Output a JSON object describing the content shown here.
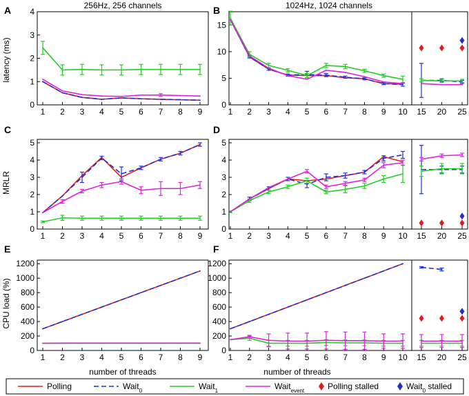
{
  "chart_data": {
    "type": "line",
    "column_titles": [
      "256Hz, 256 channels",
      "1024Hz, 1024 channels"
    ],
    "row_ylabels": [
      "latency (ms)",
      "MRLR",
      "CPU load (%)"
    ],
    "xlabel": "number of threads",
    "series_defs": [
      {
        "name": "Polling",
        "color": "#e41a1c",
        "dash": ""
      },
      {
        "name": "Wait0",
        "color": "#1f2fd8",
        "dash": "7,4"
      },
      {
        "name": "Wait1",
        "color": "#22cc22",
        "dash": ""
      },
      {
        "name": "Waitevent",
        "color": "#dd22dd",
        "dash": ""
      }
    ],
    "legend": {
      "location": "bottom",
      "items": [
        {
          "label": "Polling",
          "sub": "",
          "kind": "line",
          "color": "#e41a1c",
          "dash": ""
        },
        {
          "label": "Wait",
          "sub": "0",
          "kind": "line",
          "color": "#1f2fd8",
          "dash": "7,4"
        },
        {
          "label": "Wait",
          "sub": "1",
          "kind": "line",
          "color": "#22cc22",
          "dash": ""
        },
        {
          "label": "Wait",
          "sub": "event",
          "kind": "line",
          "color": "#dd22dd",
          "dash": ""
        },
        {
          "label": "Polling stalled",
          "sub": "",
          "kind": "diamond",
          "color": "#e41a1c",
          "dash": ""
        },
        {
          "label": "Wait",
          "sub": "0",
          "suffix": " stalled",
          "kind": "diamond",
          "color": "#1f2fd8",
          "dash": ""
        }
      ]
    },
    "panels": [
      {
        "id": "A",
        "row": 0,
        "col": 0,
        "ylim": [
          0,
          4
        ],
        "yticks": [
          0,
          1,
          2,
          3,
          4
        ],
        "x": [
          1,
          2,
          3,
          4,
          5,
          6,
          7,
          8,
          9
        ],
        "xticks": [
          1,
          2,
          3,
          4,
          5,
          6,
          7,
          8,
          9
        ],
        "series": [
          {
            "name": "Polling",
            "values": [
              1.0,
              0.52,
              0.32,
              0.24,
              0.3,
              0.26,
              0.24,
              0.22,
              0.2
            ],
            "err": [
              0,
              0,
              0,
              0,
              0,
              0,
              0,
              0,
              0
            ]
          },
          {
            "name": "Wait0",
            "values": [
              1.0,
              0.52,
              0.32,
              0.24,
              0.3,
              0.26,
              0.24,
              0.22,
              0.2
            ],
            "err": [
              0,
              0,
              0,
              0,
              0,
              0,
              0,
              0,
              0
            ]
          },
          {
            "name": "Wait1",
            "values": [
              2.45,
              1.5,
              1.52,
              1.5,
              1.5,
              1.52,
              1.52,
              1.52,
              1.52
            ],
            "err": [
              0.28,
              0.22,
              0.22,
              0.22,
              0.22,
              0.22,
              0.22,
              0.22,
              0.22
            ]
          },
          {
            "name": "Waitevent",
            "values": [
              1.1,
              0.6,
              0.44,
              0.38,
              0.36,
              0.42,
              0.42,
              0.4,
              0.38
            ],
            "err": [
              0,
              0,
              0,
              0,
              0,
              0,
              0.06,
              0,
              0
            ]
          }
        ],
        "stalled": []
      },
      {
        "id": "B",
        "row": 0,
        "col": 1,
        "ylim": [
          0,
          17.5
        ],
        "yticks": [
          0,
          5,
          10,
          15
        ],
        "x": [
          1,
          2,
          3,
          4,
          5,
          6,
          7,
          8,
          9,
          10,
          15,
          20,
          25
        ],
        "xticks": [
          1,
          2,
          3,
          4,
          5,
          6,
          7,
          8,
          9,
          10,
          15,
          20,
          25
        ],
        "series": [
          {
            "name": "Polling",
            "values": [
              16.0,
              9.0,
              6.7,
              5.6,
              5.5,
              5.5,
              5.1,
              4.9,
              4.0,
              3.9,
              null,
              null,
              null
            ],
            "err": [
              0,
              0,
              0,
              0,
              0,
              0,
              0,
              0,
              0,
              0,
              0,
              0,
              0
            ]
          },
          {
            "name": "Wait0",
            "values": [
              16.0,
              9.0,
              6.7,
              5.6,
              5.7,
              5.6,
              5.2,
              4.9,
              4.0,
              3.8,
              4.6,
              4.6,
              4.3
            ],
            "err": [
              0,
              0.2,
              0.2,
              0.2,
              0.6,
              0.3,
              0.2,
              0.2,
              0.2,
              0.3,
              3.2,
              0.3,
              0.3
            ]
          },
          {
            "name": "Wait1",
            "values": [
              16.3,
              9.5,
              7.4,
              6.5,
              5.5,
              7.4,
              7.2,
              6.4,
              5.5,
              4.8,
              4.6,
              4.5,
              4.5
            ],
            "err": [
              1.3,
              0.5,
              0.4,
              0.3,
              0.4,
              0.4,
              0.4,
              0.3,
              0.3,
              0.6,
              0.3,
              0.3,
              0.3
            ]
          },
          {
            "name": "Waitevent",
            "values": [
              16.0,
              9.2,
              6.9,
              5.5,
              4.8,
              6.5,
              6.1,
              5.3,
              4.3,
              4.0,
              4.0,
              3.8,
              3.8
            ],
            "err": [
              0,
              0,
              0,
              0,
              0,
              0,
              0,
              0,
              0,
              0,
              0,
              0,
              0
            ]
          }
        ],
        "stalled": [
          {
            "name": "Polling",
            "x": [
              15,
              20,
              25
            ],
            "values": [
              10.7,
              10.7,
              10.7
            ]
          },
          {
            "name": "Wait0",
            "x": [
              25
            ],
            "values": [
              12.1
            ]
          }
        ]
      },
      {
        "id": "C",
        "row": 1,
        "col": 0,
        "ylim": [
          0,
          5.2
        ],
        "yticks": [
          0,
          1,
          2,
          3,
          4,
          5
        ],
        "x": [
          1,
          2,
          3,
          4,
          5,
          6,
          7,
          8,
          9
        ],
        "xticks": [
          1,
          2,
          3,
          4,
          5,
          6,
          7,
          8,
          9
        ],
        "series": [
          {
            "name": "Polling",
            "values": [
              0.95,
              1.92,
              3.1,
              4.15,
              3.0,
              3.55,
              4.05,
              4.4,
              4.9
            ],
            "err": [
              0,
              0,
              0,
              0,
              0,
              0,
              0,
              0,
              0
            ]
          },
          {
            "name": "Wait0",
            "values": [
              0.95,
              1.92,
              3.0,
              4.12,
              3.2,
              3.55,
              4.05,
              4.4,
              4.9
            ],
            "err": [
              0,
              0,
              0.3,
              0.1,
              0.4,
              0.1,
              0.1,
              0.1,
              0.1
            ]
          },
          {
            "name": "Wait1",
            "values": [
              0.42,
              0.65,
              0.63,
              0.63,
              0.63,
              0.63,
              0.63,
              0.63,
              0.63
            ],
            "err": [
              0.05,
              0.15,
              0.12,
              0.12,
              0.12,
              0.12,
              0.12,
              0.12,
              0.12
            ]
          },
          {
            "name": "Waitevent",
            "values": [
              0.95,
              1.6,
              2.2,
              2.55,
              2.75,
              2.25,
              2.35,
              2.35,
              2.55
            ],
            "err": [
              0,
              0.1,
              0.1,
              0.15,
              0.15,
              0.2,
              0.4,
              0.35,
              0.2
            ]
          }
        ],
        "stalled": []
      },
      {
        "id": "D",
        "row": 1,
        "col": 1,
        "ylim": [
          0,
          5.2
        ],
        "yticks": [
          0,
          1,
          2,
          3,
          4,
          5
        ],
        "x": [
          1,
          2,
          3,
          4,
          5,
          6,
          7,
          8,
          9,
          10,
          15,
          20,
          25
        ],
        "xticks": [
          1,
          2,
          3,
          4,
          5,
          6,
          7,
          8,
          9,
          10,
          15,
          20,
          25
        ],
        "series": [
          {
            "name": "Polling",
            "values": [
              1.0,
              1.75,
              2.35,
              2.9,
              2.8,
              2.9,
              3.1,
              3.3,
              4.2,
              3.9,
              null,
              null,
              null
            ],
            "err": [
              0,
              0,
              0,
              0,
              0,
              0,
              0,
              0,
              0,
              0,
              0,
              0,
              0
            ]
          },
          {
            "name": "Wait0",
            "values": [
              1.0,
              1.75,
              2.35,
              2.9,
              2.6,
              3.0,
              3.1,
              3.3,
              4.1,
              4.3,
              3.45,
              3.45,
              3.45
            ],
            "err": [
              0,
              0.1,
              0.1,
              0.1,
              0.2,
              0.2,
              0.15,
              0.1,
              0.15,
              0.2,
              1.4,
              0.2,
              0.2
            ]
          },
          {
            "name": "Wait1",
            "values": [
              1.0,
              1.65,
              2.15,
              2.45,
              2.8,
              2.15,
              2.3,
              2.5,
              2.9,
              3.2,
              3.35,
              3.5,
              3.5
            ],
            "err": [
              0.05,
              0.1,
              0.1,
              0.1,
              0.15,
              0.1,
              0.2,
              0.15,
              0.2,
              0.5,
              0.3,
              0.3,
              0.3
            ]
          },
          {
            "name": "Waitevent",
            "values": [
              1.0,
              1.75,
              2.4,
              2.9,
              3.35,
              2.45,
              2.65,
              2.85,
              3.7,
              3.85,
              4.05,
              4.25,
              4.3
            ],
            "err": [
              0,
              0,
              0,
              0,
              0.1,
              0.1,
              0.1,
              0.1,
              0.15,
              0.15,
              0.1,
              0.1,
              0.1
            ]
          }
        ],
        "stalled": [
          {
            "name": "Polling",
            "x": [
              15,
              20,
              25
            ],
            "values": [
              0.35,
              0.35,
              0.35
            ]
          },
          {
            "name": "Wait0",
            "x": [
              25
            ],
            "values": [
              0.75
            ]
          }
        ]
      },
      {
        "id": "E",
        "row": 2,
        "col": 0,
        "ylim": [
          0,
          1250
        ],
        "yticks": [
          0,
          200,
          400,
          600,
          800,
          1000,
          1200
        ],
        "x": [
          1,
          2,
          3,
          4,
          5,
          6,
          7,
          8,
          9
        ],
        "xticks": [
          1,
          2,
          3,
          4,
          5,
          6,
          7,
          8,
          9
        ],
        "series": [
          {
            "name": "Polling",
            "values": [
              300,
              400,
              500,
              600,
              700,
              800,
              900,
              1000,
              1100
            ],
            "err": [
              0,
              0,
              0,
              0,
              0,
              0,
              0,
              0,
              0
            ]
          },
          {
            "name": "Wait0",
            "values": [
              300,
              400,
              500,
              600,
              700,
              800,
              900,
              1000,
              1100
            ],
            "err": [
              0,
              0,
              0,
              0,
              0,
              0,
              0,
              0,
              0
            ]
          },
          {
            "name": "Wait1",
            "values": [
              100,
              100,
              100,
              100,
              100,
              100,
              100,
              100,
              100
            ],
            "err": [
              0,
              0,
              0,
              0,
              0,
              0,
              0,
              0,
              0
            ]
          },
          {
            "name": "Waitevent",
            "values": [
              100,
              102,
              102,
              102,
              102,
              102,
              102,
              102,
              102
            ],
            "err": [
              0,
              0,
              0,
              0,
              0,
              0,
              0,
              0,
              0
            ]
          }
        ],
        "stalled": []
      },
      {
        "id": "F",
        "row": 2,
        "col": 1,
        "ylim": [
          0,
          1250
        ],
        "yticks": [
          0,
          200,
          400,
          600,
          800,
          1000,
          1200
        ],
        "x": [
          1,
          2,
          3,
          4,
          5,
          6,
          7,
          8,
          9,
          10,
          15,
          20,
          25
        ],
        "xticks": [
          1,
          2,
          3,
          4,
          5,
          6,
          7,
          8,
          9,
          10,
          15,
          20,
          25
        ],
        "series": [
          {
            "name": "Polling",
            "values": [
              300,
              400,
              500,
              600,
              700,
              800,
              900,
              1000,
              1100,
              1200,
              null,
              null,
              null
            ],
            "err": [
              0,
              0,
              0,
              0,
              0,
              0,
              0,
              0,
              0,
              0,
              0,
              0,
              0
            ]
          },
          {
            "name": "Wait0",
            "values": [
              300,
              400,
              500,
              600,
              700,
              800,
              900,
              1000,
              1100,
              1200,
              1150,
              1120,
              null
            ],
            "err": [
              0,
              0,
              0,
              0,
              0,
              0,
              0,
              0,
              0,
              0,
              10,
              20,
              0
            ]
          },
          {
            "name": "Wait1",
            "values": [
              150,
              170,
              100,
              100,
              100,
              110,
              105,
              105,
              100,
              100,
              100,
              100,
              100
            ],
            "err": [
              0,
              30,
              40,
              40,
              40,
              40,
              40,
              40,
              40,
              40,
              40,
              40,
              40
            ]
          },
          {
            "name": "Waitevent",
            "values": [
              150,
              190,
              140,
              130,
              130,
              140,
              135,
              135,
              130,
              130,
              130,
              130,
              130
            ],
            "err": [
              0,
              20,
              90,
              110,
              110,
              120,
              120,
              120,
              100,
              100,
              90,
              90,
              90
            ]
          }
        ],
        "stalled": [
          {
            "name": "Polling",
            "x": [
              15,
              20,
              25
            ],
            "values": [
              445,
              445,
              445
            ]
          },
          {
            "name": "Wait0",
            "x": [
              25
            ],
            "values": [
              540
            ]
          }
        ]
      }
    ]
  }
}
